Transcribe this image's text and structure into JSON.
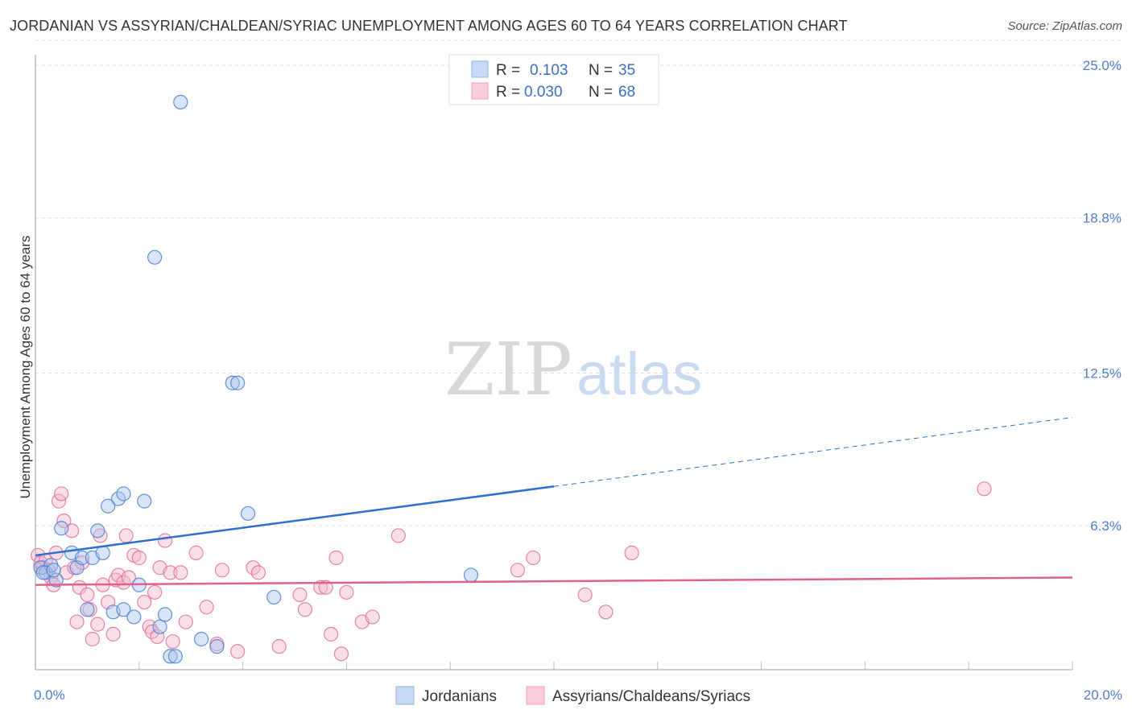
{
  "title": "JORDANIAN VS ASSYRIAN/CHALDEAN/SYRIAC UNEMPLOYMENT AMONG AGES 60 TO 64 YEARS CORRELATION CHART",
  "source": "Source: ZipAtlas.com",
  "watermark": {
    "zip": "ZIP",
    "atlas": "atlas"
  },
  "colors": {
    "blue": "#4a7fd0",
    "blue_fill": "#a9c4ee",
    "blue_line": "#2d6fcc",
    "pink": "#e0709a",
    "pink_fill": "#f5b8cd",
    "pink_line": "#e0608e",
    "grid": "#dddddd",
    "axis": "#bbbbbb"
  },
  "legend": {
    "r_label": "R =",
    "n_label": "N =",
    "rows": [
      {
        "r": "0.103",
        "n": "35"
      },
      {
        "r": "0.030",
        "n": "68"
      }
    ]
  },
  "chart_data": {
    "type": "scatter",
    "title": "JORDANIAN VS ASSYRIAN/CHALDEAN/SYRIAC UNEMPLOYMENT AMONG AGES 60 TO 64 YEARS CORRELATION CHART",
    "ylabel": "Unemployment Among Ages 60 to 64 years",
    "xlabel": "",
    "xlim": [
      0,
      20
    ],
    "ylim": [
      0,
      26
    ],
    "x_tick_labels": [
      "0.0%",
      "20.0%"
    ],
    "y_ticks": [
      6.3,
      12.5,
      18.8,
      25.0
    ],
    "y_tick_labels": [
      "6.3%",
      "12.5%",
      "18.8%",
      "25.0%"
    ],
    "grid": true,
    "legend_position": "bottom",
    "series": [
      {
        "name": "Jordanians",
        "color": "#4a7fd0",
        "trend": {
          "x0": 0,
          "y0": 5.1,
          "x1": 10,
          "y1": 7.9,
          "dash_to_x": 20,
          "dash_to_y": 10.7
        },
        "points": [
          [
            0.1,
            4.6
          ],
          [
            0.2,
            4.4
          ],
          [
            0.3,
            4.7
          ],
          [
            0.4,
            4.1
          ],
          [
            0.5,
            6.2
          ],
          [
            0.7,
            5.2
          ],
          [
            0.8,
            4.6
          ],
          [
            0.9,
            5.0
          ],
          [
            1.0,
            2.9
          ],
          [
            1.1,
            5.0
          ],
          [
            1.2,
            6.1
          ],
          [
            1.3,
            5.2
          ],
          [
            1.4,
            7.1
          ],
          [
            1.5,
            2.8
          ],
          [
            1.6,
            7.4
          ],
          [
            1.7,
            2.9
          ],
          [
            1.7,
            7.6
          ],
          [
            1.9,
            2.6
          ],
          [
            2.0,
            3.9
          ],
          [
            2.1,
            7.3
          ],
          [
            2.3,
            17.2
          ],
          [
            2.4,
            2.2
          ],
          [
            2.5,
            2.7
          ],
          [
            2.6,
            1.0
          ],
          [
            2.7,
            1.0
          ],
          [
            2.8,
            23.5
          ],
          [
            3.2,
            1.7
          ],
          [
            3.5,
            1.4
          ],
          [
            3.8,
            12.1
          ],
          [
            3.9,
            12.1
          ],
          [
            4.1,
            6.8
          ],
          [
            4.6,
            3.4
          ],
          [
            8.4,
            4.3
          ],
          [
            0.15,
            4.4
          ],
          [
            0.35,
            4.5
          ]
        ]
      },
      {
        "name": "Assyrians/Chaldeans/Syriacs",
        "color": "#e0709a",
        "trend": {
          "x0": 0,
          "y0": 3.9,
          "x1": 20,
          "y1": 4.2
        },
        "points": [
          [
            0.05,
            5.1
          ],
          [
            0.1,
            4.8
          ],
          [
            0.15,
            4.6
          ],
          [
            0.2,
            4.9
          ],
          [
            0.25,
            4.5
          ],
          [
            0.3,
            4.2
          ],
          [
            0.35,
            3.9
          ],
          [
            0.4,
            5.2
          ],
          [
            0.45,
            7.3
          ],
          [
            0.5,
            7.6
          ],
          [
            0.55,
            6.5
          ],
          [
            0.6,
            4.4
          ],
          [
            0.7,
            6.1
          ],
          [
            0.75,
            4.6
          ],
          [
            0.8,
            2.4
          ],
          [
            0.85,
            3.8
          ],
          [
            0.9,
            4.8
          ],
          [
            1.0,
            3.5
          ],
          [
            1.05,
            2.9
          ],
          [
            1.1,
            1.7
          ],
          [
            1.2,
            2.3
          ],
          [
            1.25,
            5.9
          ],
          [
            1.3,
            3.9
          ],
          [
            1.4,
            3.2
          ],
          [
            1.5,
            1.9
          ],
          [
            1.55,
            4.1
          ],
          [
            1.6,
            4.3
          ],
          [
            1.7,
            4.0
          ],
          [
            1.75,
            5.9
          ],
          [
            1.8,
            4.2
          ],
          [
            1.9,
            5.1
          ],
          [
            2.0,
            5.0
          ],
          [
            2.1,
            3.2
          ],
          [
            2.2,
            2.2
          ],
          [
            2.25,
            2.0
          ],
          [
            2.3,
            3.6
          ],
          [
            2.35,
            1.8
          ],
          [
            2.4,
            4.6
          ],
          [
            2.5,
            5.7
          ],
          [
            2.6,
            4.4
          ],
          [
            2.65,
            1.6
          ],
          [
            2.8,
            4.4
          ],
          [
            2.9,
            2.4
          ],
          [
            3.1,
            5.2
          ],
          [
            3.3,
            3.0
          ],
          [
            3.5,
            1.5
          ],
          [
            3.6,
            4.5
          ],
          [
            3.9,
            1.2
          ],
          [
            4.2,
            4.6
          ],
          [
            4.3,
            4.4
          ],
          [
            4.7,
            1.4
          ],
          [
            5.1,
            3.5
          ],
          [
            5.2,
            2.9
          ],
          [
            5.5,
            3.8
          ],
          [
            5.6,
            3.8
          ],
          [
            5.7,
            1.9
          ],
          [
            5.8,
            5.0
          ],
          [
            5.9,
            1.1
          ],
          [
            6.0,
            3.6
          ],
          [
            6.3,
            2.4
          ],
          [
            6.5,
            2.6
          ],
          [
            7.0,
            5.9
          ],
          [
            9.3,
            4.5
          ],
          [
            9.6,
            5.0
          ],
          [
            10.6,
            3.5
          ],
          [
            11.0,
            2.8
          ],
          [
            11.5,
            5.2
          ],
          [
            18.3,
            7.8
          ]
        ]
      }
    ]
  }
}
